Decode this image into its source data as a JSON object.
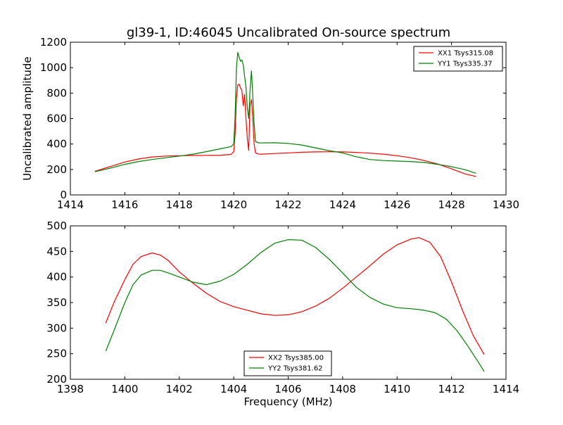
{
  "figure_title": "gl39-1, ID:46045 Uncalibrated On-source spectrum",
  "colors": {
    "red": "#ff0000",
    "green": "#008000",
    "axes": "#000000",
    "background": "#ffffff"
  },
  "chart_data": [
    {
      "type": "line",
      "title": "gl39-1, ID:46045 Uncalibrated On-source spectrum",
      "xlabel": "",
      "ylabel": "Uncalibrated amplitude",
      "xlim": [
        1414,
        1430
      ],
      "ylim": [
        0,
        1200
      ],
      "xticks": [
        1414,
        1416,
        1418,
        1420,
        1422,
        1424,
        1426,
        1428,
        1430
      ],
      "yticks": [
        0,
        200,
        400,
        600,
        800,
        1000,
        1200
      ],
      "grid": false,
      "legend": "top-right",
      "series": [
        {
          "name": "XX1 Tsys315.08",
          "color": "#ff0000",
          "x": [
            1414.9,
            1415.5,
            1416.0,
            1416.5,
            1417.0,
            1417.5,
            1418.0,
            1418.5,
            1419.0,
            1419.5,
            1419.9,
            1420.0,
            1420.05,
            1420.1,
            1420.15,
            1420.2,
            1420.25,
            1420.3,
            1420.35,
            1420.4,
            1420.45,
            1420.5,
            1420.55,
            1420.6,
            1420.65,
            1420.7,
            1420.75,
            1420.8,
            1420.9,
            1421.0,
            1421.5,
            1422.0,
            1422.5,
            1423.0,
            1423.5,
            1424.0,
            1424.5,
            1425.0,
            1425.5,
            1426.0,
            1426.5,
            1427.0,
            1427.5,
            1428.0,
            1428.5,
            1428.9
          ],
          "y": [
            185,
            225,
            258,
            282,
            298,
            305,
            308,
            310,
            311,
            312,
            318,
            340,
            480,
            760,
            865,
            870,
            840,
            820,
            700,
            790,
            600,
            440,
            350,
            700,
            750,
            600,
            400,
            330,
            322,
            320,
            325,
            330,
            335,
            338,
            339,
            338,
            334,
            328,
            320,
            308,
            292,
            270,
            242,
            205,
            165,
            145
          ]
        },
        {
          "name": "YY1 Tsys335.37",
          "color": "#008000",
          "x": [
            1414.9,
            1415.5,
            1416.0,
            1416.5,
            1417.0,
            1417.5,
            1418.0,
            1418.5,
            1419.0,
            1419.5,
            1419.9,
            1420.0,
            1420.05,
            1420.1,
            1420.15,
            1420.2,
            1420.25,
            1420.3,
            1420.35,
            1420.4,
            1420.45,
            1420.5,
            1420.55,
            1420.6,
            1420.65,
            1420.7,
            1420.75,
            1420.8,
            1420.9,
            1421.0,
            1421.5,
            1422.0,
            1422.5,
            1423.0,
            1423.5,
            1424.0,
            1424.5,
            1425.0,
            1425.5,
            1426.0,
            1426.5,
            1427.0,
            1427.5,
            1428.0,
            1428.5,
            1428.9
          ],
          "y": [
            182,
            212,
            240,
            262,
            278,
            292,
            305,
            320,
            340,
            362,
            380,
            400,
            620,
            1000,
            1120,
            1080,
            1050,
            1060,
            1020,
            930,
            850,
            680,
            600,
            820,
            975,
            780,
            560,
            420,
            410,
            408,
            410,
            405,
            392,
            370,
            348,
            330,
            300,
            278,
            270,
            266,
            262,
            255,
            240,
            222,
            198,
            170
          ]
        }
      ]
    },
    {
      "type": "line",
      "title": "",
      "xlabel": "Frequency (MHz)",
      "ylabel": "",
      "xlim": [
        1398,
        1414
      ],
      "ylim": [
        200,
        500
      ],
      "xticks": [
        1398,
        1400,
        1402,
        1404,
        1406,
        1408,
        1410,
        1412,
        1414
      ],
      "yticks": [
        200,
        250,
        300,
        350,
        400,
        450,
        500
      ],
      "grid": false,
      "legend": "bottom-center",
      "series": [
        {
          "name": "XX2 Tsys385.00",
          "color": "#ff0000",
          "x": [
            1399.3,
            1399.6,
            1400.0,
            1400.3,
            1400.6,
            1401.0,
            1401.3,
            1401.6,
            1402.0,
            1402.5,
            1403.0,
            1403.5,
            1404.0,
            1404.5,
            1405.0,
            1405.5,
            1406.0,
            1406.5,
            1407.0,
            1407.5,
            1408.0,
            1408.5,
            1409.0,
            1409.5,
            1410.0,
            1410.5,
            1410.8,
            1411.2,
            1411.6,
            1412.0,
            1412.4,
            1412.8,
            1413.2
          ],
          "y": [
            310,
            350,
            395,
            425,
            440,
            447,
            443,
            432,
            410,
            388,
            368,
            352,
            342,
            335,
            328,
            325,
            326,
            332,
            343,
            358,
            378,
            400,
            422,
            445,
            463,
            474,
            477,
            468,
            440,
            390,
            335,
            285,
            248
          ]
        },
        {
          "name": "YY2 Tsys381.62",
          "color": "#008000",
          "x": [
            1399.3,
            1399.6,
            1400.0,
            1400.3,
            1400.6,
            1401.0,
            1401.3,
            1401.6,
            1402.0,
            1402.5,
            1403.0,
            1403.5,
            1404.0,
            1404.5,
            1405.0,
            1405.5,
            1406.0,
            1406.5,
            1407.0,
            1407.5,
            1408.0,
            1408.5,
            1409.0,
            1409.5,
            1410.0,
            1410.5,
            1411.0,
            1411.4,
            1411.8,
            1412.2,
            1412.6,
            1413.0,
            1413.2
          ],
          "y": [
            255,
            295,
            350,
            385,
            404,
            413,
            413,
            408,
            400,
            390,
            385,
            392,
            405,
            425,
            448,
            466,
            473,
            472,
            458,
            435,
            408,
            380,
            360,
            347,
            340,
            338,
            335,
            330,
            318,
            295,
            265,
            232,
            215
          ]
        }
      ]
    }
  ]
}
